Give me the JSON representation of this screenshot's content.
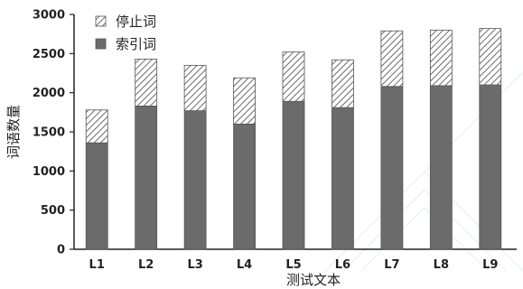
{
  "chart_data": {
    "type": "bar",
    "stacked": true,
    "categories": [
      "L1",
      "L2",
      "L3",
      "L4",
      "L5",
      "L6",
      "L7",
      "L8",
      "L9"
    ],
    "series": [
      {
        "name": "索引词",
        "values": [
          1360,
          1830,
          1770,
          1600,
          1890,
          1810,
          2080,
          2090,
          2100
        ],
        "color": "#6b6b6b",
        "fill": "solid"
      },
      {
        "name": "停止词",
        "values": [
          420,
          600,
          580,
          590,
          630,
          610,
          710,
          710,
          720
        ],
        "color": "#6b6b6b",
        "fill": "hatched"
      }
    ],
    "xlabel": "测试文本",
    "ylabel": "词语数量",
    "ylim": [
      0,
      3000
    ],
    "yticks": [
      0,
      500,
      1000,
      1500,
      2000,
      2500,
      3000
    ],
    "grid": false,
    "legend_position": "top-left"
  }
}
